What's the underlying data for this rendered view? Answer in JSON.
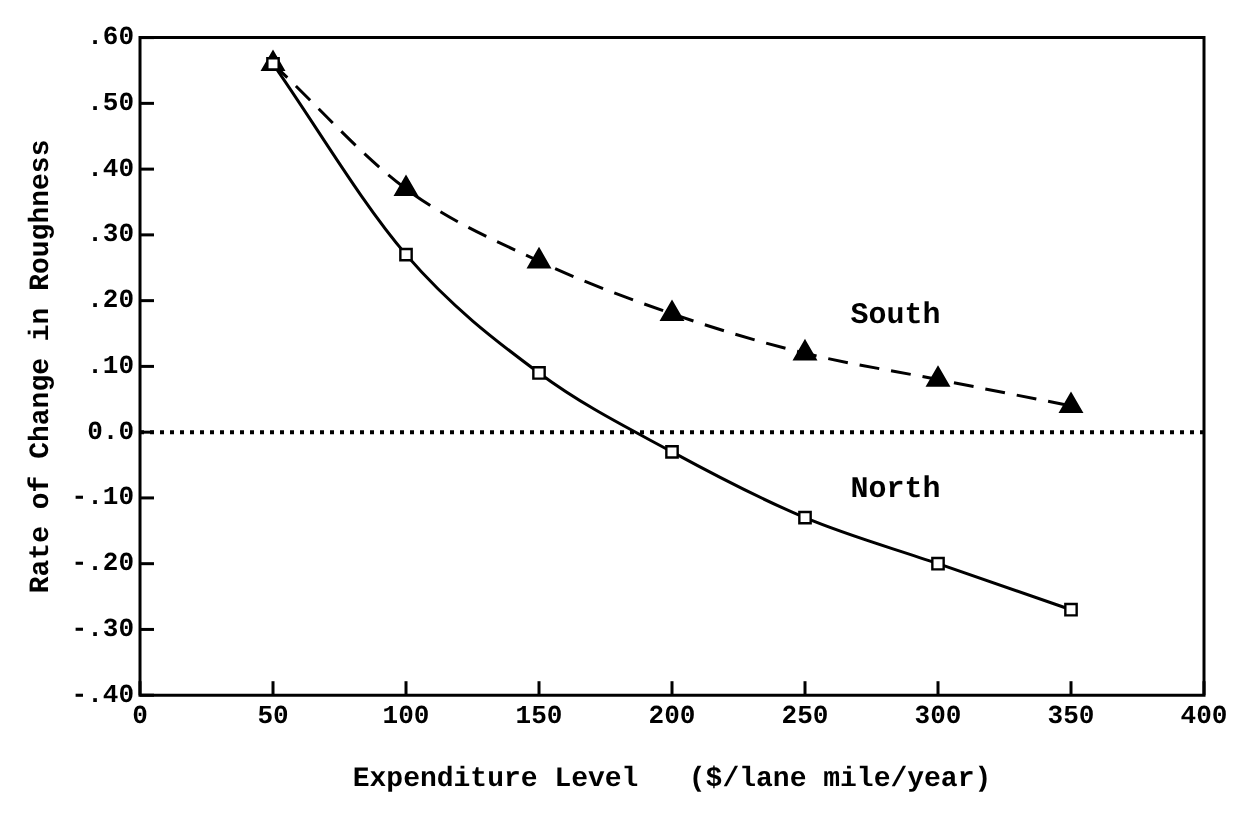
{
  "chart_data": {
    "type": "line",
    "xlabel": "Expenditure Level   ($/lane mile/year)",
    "ylabel": "Rate of Change in Roughness",
    "x": [
      50,
      100,
      150,
      200,
      250,
      300,
      350
    ],
    "series": [
      {
        "name": "North",
        "color": "#000000",
        "values": [
          0.56,
          0.27,
          0.09,
          -0.03,
          -0.13,
          -0.2,
          -0.27
        ],
        "marker": "square",
        "line_style": "solid"
      },
      {
        "name": "South",
        "color": "#000000",
        "values": [
          0.56,
          0.37,
          0.26,
          0.18,
          0.12,
          0.08,
          0.04
        ],
        "marker": "triangle",
        "line_style": "dashed"
      }
    ],
    "xlim": [
      0,
      400
    ],
    "xticks": [
      0,
      50,
      100,
      150,
      200,
      250,
      300,
      350,
      400
    ],
    "ylim": [
      -0.4,
      0.6
    ],
    "yticks": [
      {
        "value": -0.4,
        "label": "-.40"
      },
      {
        "value": -0.3,
        "label": "-.30"
      },
      {
        "value": -0.2,
        "label": "-.20"
      },
      {
        "value": -0.1,
        "label": "-.10"
      },
      {
        "value": 0,
        "label": "0.0"
      },
      {
        "value": 0.1,
        "label": ".10"
      },
      {
        "value": 0.2,
        "label": ".20"
      },
      {
        "value": 0.3,
        "label": ".30"
      },
      {
        "value": 0.4,
        "label": ".40"
      },
      {
        "value": 0.5,
        "label": ".50"
      },
      {
        "value": 0.6,
        "label": ".60"
      }
    ],
    "ref_lines": [
      {
        "axis": "y",
        "value": 0,
        "line_style": "dotted"
      }
    ],
    "grid": false,
    "legend": false
  }
}
